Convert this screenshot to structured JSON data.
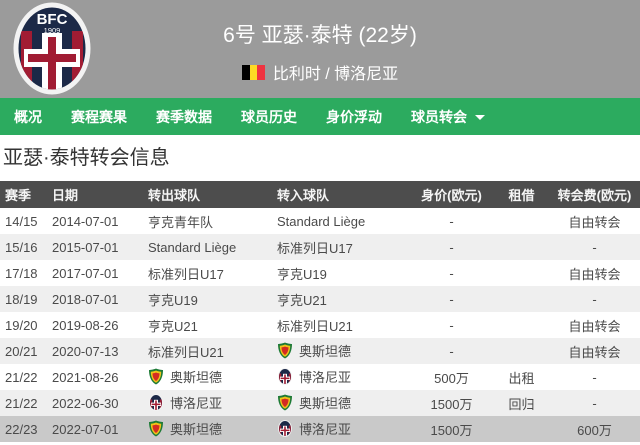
{
  "header": {
    "title": "6号 亚瑟·泰特 (22岁)",
    "subtitle": "比利时 / 博洛尼亚",
    "crest": {
      "name": "bologna-crest",
      "text": "BFC",
      "year": "1909"
    },
    "flag": "belgium-flag"
  },
  "nav": {
    "items": [
      {
        "key": "overview",
        "label": "概况",
        "dropdown": false
      },
      {
        "key": "fixtures-results",
        "label": "赛程赛果",
        "dropdown": false
      },
      {
        "key": "season-stats",
        "label": "赛季数据",
        "dropdown": false
      },
      {
        "key": "player-history",
        "label": "球员历史",
        "dropdown": false
      },
      {
        "key": "market-value",
        "label": "身价浮动",
        "dropdown": false
      },
      {
        "key": "transfers",
        "label": "球员转会",
        "dropdown": true
      }
    ]
  },
  "section_title": "亚瑟·泰特转会信息",
  "table": {
    "columns": [
      "赛季",
      "日期",
      "转出球队",
      "转入球队",
      "身价(欧元)",
      "租借",
      "转会费(欧元)"
    ],
    "rows": [
      {
        "season": "14/15",
        "date": "2014-07-01",
        "from": {
          "icon": null,
          "name": "亨克青年队"
        },
        "to": {
          "icon": null,
          "name": "Standard Liège"
        },
        "market_value": "-",
        "loan": "",
        "fee": "自由转会",
        "highlight": false
      },
      {
        "season": "15/16",
        "date": "2015-07-01",
        "from": {
          "icon": null,
          "name": "Standard Liège"
        },
        "to": {
          "icon": null,
          "name": "标准列日U17"
        },
        "market_value": "-",
        "loan": "",
        "fee": "-",
        "highlight": false
      },
      {
        "season": "17/18",
        "date": "2017-07-01",
        "from": {
          "icon": null,
          "name": "标准列日U17"
        },
        "to": {
          "icon": null,
          "name": "亨克U19"
        },
        "market_value": "-",
        "loan": "",
        "fee": "自由转会",
        "highlight": false
      },
      {
        "season": "18/19",
        "date": "2018-07-01",
        "from": {
          "icon": null,
          "name": "亨克U19"
        },
        "to": {
          "icon": null,
          "name": "亨克U21"
        },
        "market_value": "-",
        "loan": "",
        "fee": "-",
        "highlight": false
      },
      {
        "season": "19/20",
        "date": "2019-08-26",
        "from": {
          "icon": null,
          "name": "亨克U21"
        },
        "to": {
          "icon": null,
          "name": "标准列日U21"
        },
        "market_value": "-",
        "loan": "",
        "fee": "自由转会",
        "highlight": false
      },
      {
        "season": "20/21",
        "date": "2020-07-13",
        "from": {
          "icon": null,
          "name": "标准列日U21"
        },
        "to": {
          "icon": "oostende",
          "name": "奥斯坦德"
        },
        "market_value": "-",
        "loan": "",
        "fee": "自由转会",
        "highlight": false
      },
      {
        "season": "21/22",
        "date": "2021-08-26",
        "from": {
          "icon": "oostende",
          "name": "奥斯坦德"
        },
        "to": {
          "icon": "bologna",
          "name": "博洛尼亚"
        },
        "market_value": "500万",
        "loan": "出租",
        "fee": "-",
        "highlight": false
      },
      {
        "season": "21/22",
        "date": "2022-06-30",
        "from": {
          "icon": "bologna",
          "name": "博洛尼亚"
        },
        "to": {
          "icon": "oostende",
          "name": "奥斯坦德"
        },
        "market_value": "1500万",
        "loan": "回归",
        "fee": "-",
        "highlight": false
      },
      {
        "season": "22/23",
        "date": "2022-07-01",
        "from": {
          "icon": "oostende",
          "name": "奥斯坦德"
        },
        "to": {
          "icon": "bologna",
          "name": "博洛尼亚"
        },
        "market_value": "1500万",
        "loan": "",
        "fee": "600万",
        "highlight": true
      }
    ]
  },
  "colors": {
    "header_bg": "#9b9b9b",
    "nav_green": "#2cab5f",
    "table_header_bg": "#4d4d4d",
    "row_alt": "#efefef",
    "row_highlight": "#c9c9c9",
    "flag": [
      "#000000",
      "#fdda24",
      "#ef3340"
    ],
    "bologna_navy": "#1c2947",
    "bologna_red": "#a11c33",
    "oostende": [
      "#1d7a36",
      "#f0c419",
      "#d42b22"
    ]
  }
}
